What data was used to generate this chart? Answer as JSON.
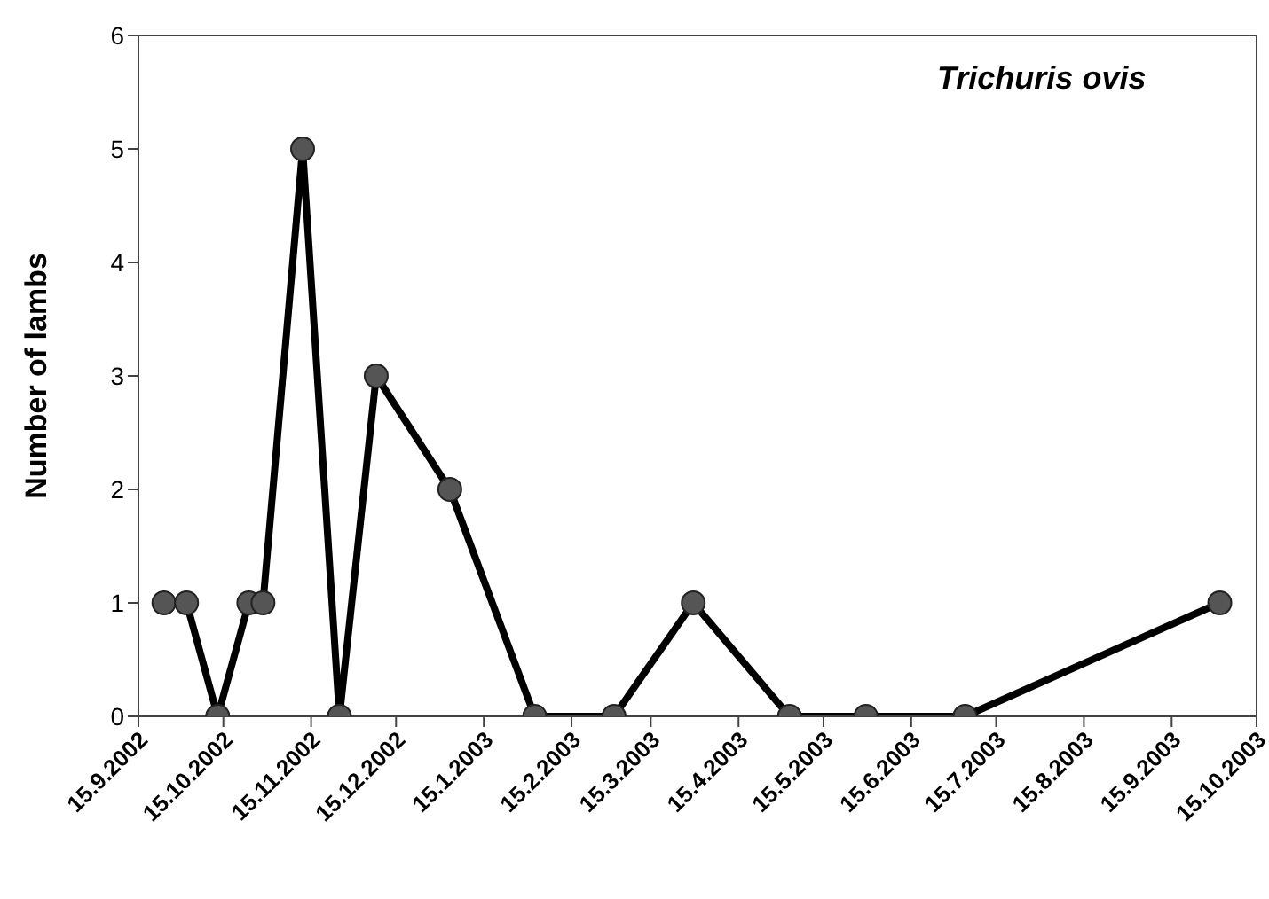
{
  "chart_data": {
    "type": "line",
    "ylabel": "Number of lambs",
    "annotations": [
      "Trichuris ovis"
    ],
    "x": [
      "2002-09-24",
      "2002-10-02",
      "2002-10-13",
      "2002-10-24",
      "2002-10-29",
      "2002-11-12",
      "2002-11-25",
      "2002-12-08",
      "2003-01-03",
      "2003-02-02",
      "2003-03-02",
      "2003-03-30",
      "2003-05-03",
      "2003-05-30",
      "2003-07-04",
      "2003-10-02"
    ],
    "series": [
      {
        "color": "#000000",
        "values": [
          1,
          1,
          0,
          1,
          1,
          5,
          0,
          3,
          2,
          0,
          0,
          1,
          0,
          0,
          0,
          1
        ]
      }
    ],
    "xlim": [
      "2002-09-15",
      "2003-10-15"
    ],
    "xticks": [
      {
        "value": "2002-09-15",
        "label": "15.9.2002"
      },
      {
        "value": "2002-10-15",
        "label": "15.10.2002"
      },
      {
        "value": "2002-11-15",
        "label": "15.11.2002"
      },
      {
        "value": "2002-12-15",
        "label": "15.12.2002"
      },
      {
        "value": "2003-01-15",
        "label": "15.1.2003"
      },
      {
        "value": "2003-02-15",
        "label": "15.2.2003"
      },
      {
        "value": "2003-03-15",
        "label": "15.3.2003"
      },
      {
        "value": "2003-04-15",
        "label": "15.4.2003"
      },
      {
        "value": "2003-05-15",
        "label": "15.5.2003"
      },
      {
        "value": "2003-06-15",
        "label": "15.6.2003"
      },
      {
        "value": "2003-07-15",
        "label": "15.7.2003"
      },
      {
        "value": "2003-08-15",
        "label": "15.8.2003"
      },
      {
        "value": "2003-09-15",
        "label": "15.9.2003"
      },
      {
        "value": "2003-10-15",
        "label": "15.10.2003"
      }
    ],
    "ylim": [
      0,
      6
    ],
    "yticks": [
      0,
      1,
      2,
      3,
      4,
      5,
      6
    ],
    "grid": false,
    "legend": false,
    "marker": "circle",
    "line_style": "solid"
  }
}
